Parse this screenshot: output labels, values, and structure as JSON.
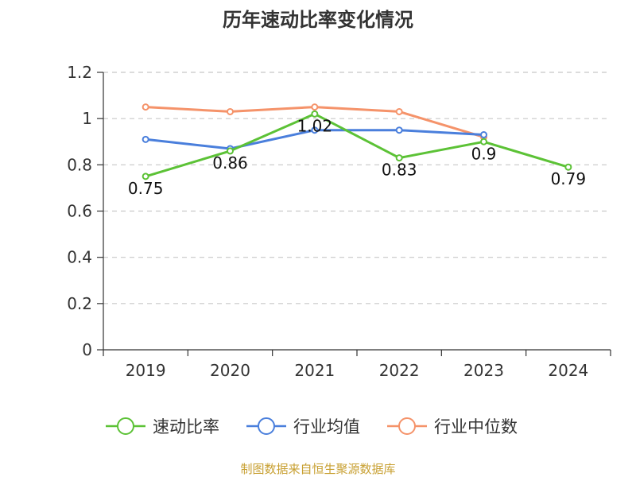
{
  "chart_data": {
    "type": "line",
    "title": "历年速动比率变化情况",
    "categories": [
      "2019",
      "2020",
      "2021",
      "2022",
      "2023",
      "2024"
    ],
    "ylim": [
      0,
      1.2
    ],
    "yticks": [
      "0",
      "0.2",
      "0.4",
      "0.6",
      "0.8",
      "1",
      "1.2"
    ],
    "ytick_values": [
      0,
      0.2,
      0.4,
      0.6,
      0.8,
      1.0,
      1.2
    ],
    "grid": true,
    "legend_position": "bottom",
    "series": [
      {
        "name": "速动比率",
        "color": "#5cc236",
        "values": [
          0.75,
          0.86,
          1.02,
          0.83,
          0.9,
          0.79
        ],
        "labels": [
          "0.75",
          "0.86",
          "1.02",
          "0.83",
          "0.9",
          "0.79"
        ]
      },
      {
        "name": "行业均值",
        "color": "#4a7fdc",
        "values": [
          0.91,
          0.87,
          0.95,
          0.95,
          0.93,
          null
        ]
      },
      {
        "name": "行业中位数",
        "color": "#f5936a",
        "values": [
          1.05,
          1.03,
          1.05,
          1.03,
          0.92,
          null
        ]
      }
    ]
  },
  "source": {
    "text": "制图数据来自恒生聚源数据库",
    "color": "#c8a032"
  }
}
